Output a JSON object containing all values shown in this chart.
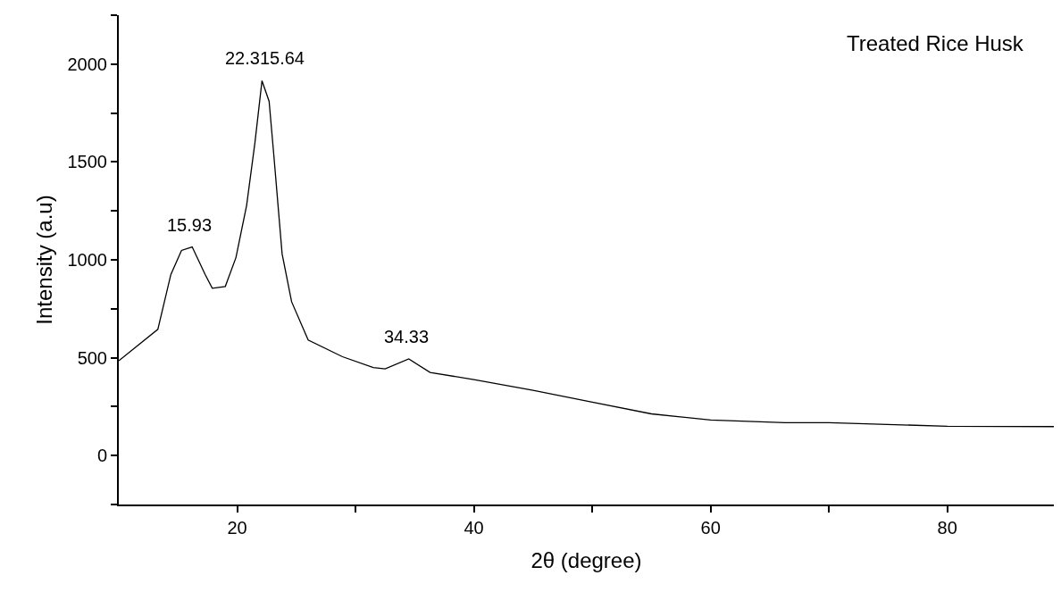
{
  "chart_data": {
    "type": "line",
    "xlabel": "2θ (degree)",
    "ylabel": "Intensity (a.u)",
    "series": [
      {
        "color": "#000000",
        "x": [
          10,
          13.3,
          14.4,
          15.3,
          16.2,
          17.3,
          17.9,
          19.0,
          19.9,
          20.8,
          21.5,
          22.1,
          22.7,
          23.1,
          23.8,
          24.6,
          26.0,
          28.9,
          31.5,
          32.5,
          34.5,
          36.3,
          40,
          45,
          50,
          55,
          60,
          66.3,
          70,
          80,
          89
        ],
        "values": [
          484,
          645,
          925,
          1048,
          1066,
          925,
          855,
          864,
          1012,
          1278,
          1597,
          1915,
          1810,
          1534,
          1030,
          786,
          590,
          505,
          450,
          443,
          494,
          425,
          388,
          333,
          273,
          213,
          182,
          168,
          168,
          150,
          148
        ]
      }
    ],
    "annotations": [
      {
        "text": "15.93",
        "x": 15.93,
        "y": 1066
      },
      {
        "text": "22.315.64",
        "x": 22.3,
        "y": 1915
      },
      {
        "text": "34.33",
        "x": 34.33,
        "y": 494
      },
      "Treated Rice Husk"
    ],
    "xlim": [
      10,
      89
    ],
    "ylim": [
      -250,
      2250
    ],
    "xticks": [
      20,
      {
        "value": 30,
        "label": null
      },
      40,
      {
        "value": 50,
        "label": null
      },
      60,
      {
        "value": 70,
        "label": null
      },
      80
    ],
    "yticks": [
      {
        "value": -250,
        "label": null
      },
      0,
      {
        "value": 250,
        "label": null
      },
      500,
      {
        "value": 750,
        "label": null
      },
      1000,
      {
        "value": 1250,
        "label": null
      },
      1500,
      {
        "value": 1750,
        "label": null
      },
      2000,
      {
        "value": 2250,
        "label": null
      }
    ],
    "marker": "none",
    "line_style": "solid"
  }
}
